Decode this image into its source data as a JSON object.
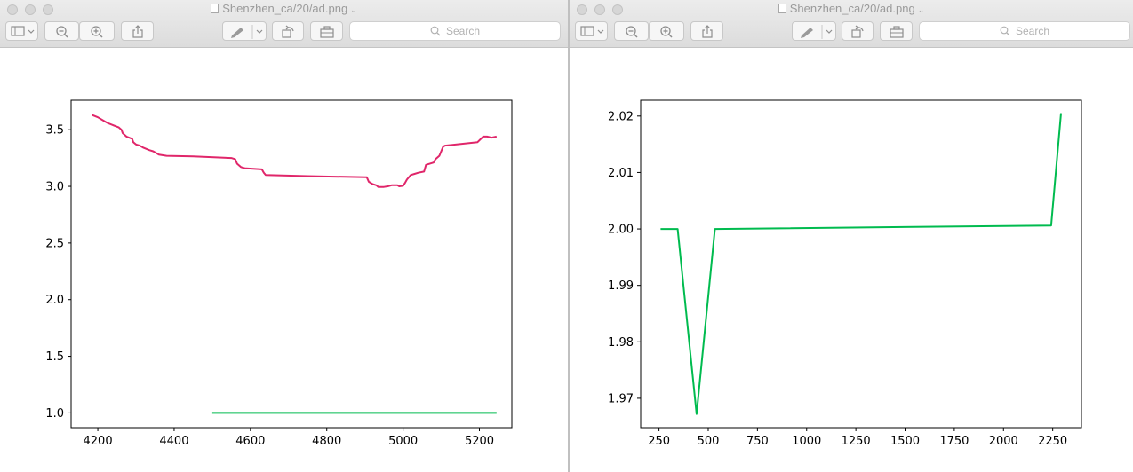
{
  "windows": [
    {
      "title": "Shenzhen_ca/20/ad.png",
      "search_placeholder": "Search",
      "icons": [
        "sidebar-icon",
        "zoom-out-icon",
        "zoom-in-icon",
        "share-icon",
        "markup-pen-icon",
        "rotate-icon",
        "toolbox-icon",
        "search-icon"
      ]
    },
    {
      "title": "Shenzhen_ca/20/ad.png",
      "search_placeholder": "Search",
      "icons": [
        "sidebar-icon",
        "zoom-out-icon",
        "zoom-in-icon",
        "share-icon",
        "markup-pen-icon",
        "rotate-icon",
        "toolbox-icon",
        "search-icon"
      ]
    }
  ],
  "chart_data": [
    {
      "type": "line",
      "title": "",
      "xlabel": "",
      "ylabel": "",
      "xlim": [
        4130,
        5285
      ],
      "ylim": [
        0.87,
        3.76
      ],
      "xticks": [
        4200,
        4400,
        4600,
        4800,
        5000,
        5200
      ],
      "yticks": [
        1.0,
        1.5,
        2.0,
        2.5,
        3.0,
        3.5
      ],
      "xtick_labels": [
        "4200",
        "4400",
        "4600",
        "4800",
        "5000",
        "5200"
      ],
      "ytick_labels": [
        "1.0",
        "1.5",
        "2.0",
        "2.5",
        "3.0",
        "3.5"
      ],
      "grid": false,
      "series": [
        {
          "color": "#e0266a",
          "points": [
            [
              4185,
              3.63
            ],
            [
              4200,
              3.61
            ],
            [
              4215,
              3.58
            ],
            [
              4225,
              3.56
            ],
            [
              4240,
              3.54
            ],
            [
              4255,
              3.52
            ],
            [
              4262,
              3.5
            ],
            [
              4265,
              3.47
            ],
            [
              4275,
              3.44
            ],
            [
              4290,
              3.42
            ],
            [
              4293,
              3.39
            ],
            [
              4300,
              3.37
            ],
            [
              4310,
              3.36
            ],
            [
              4320,
              3.34
            ],
            [
              4335,
              3.32
            ],
            [
              4345,
              3.31
            ],
            [
              4355,
              3.29
            ],
            [
              4360,
              3.28
            ],
            [
              4380,
              3.27
            ],
            [
              4450,
              3.265
            ],
            [
              4550,
              3.25
            ],
            [
              4560,
              3.24
            ],
            [
              4565,
              3.2
            ],
            [
              4575,
              3.17
            ],
            [
              4585,
              3.16
            ],
            [
              4630,
              3.15
            ],
            [
              4635,
              3.12
            ],
            [
              4640,
              3.1
            ],
            [
              4750,
              3.09
            ],
            [
              4905,
              3.08
            ],
            [
              4910,
              3.04
            ],
            [
              4920,
              3.02
            ],
            [
              4930,
              3.01
            ],
            [
              4935,
              2.995
            ],
            [
              4950,
              2.995
            ],
            [
              4960,
              3.0
            ],
            [
              4970,
              3.01
            ],
            [
              4985,
              3.01
            ],
            [
              4990,
              3.0
            ],
            [
              5000,
              3.005
            ],
            [
              5005,
              3.03
            ],
            [
              5010,
              3.06
            ],
            [
              5020,
              3.1
            ],
            [
              5030,
              3.11
            ],
            [
              5040,
              3.12
            ],
            [
              5055,
              3.13
            ],
            [
              5060,
              3.19
            ],
            [
              5080,
              3.21
            ],
            [
              5085,
              3.24
            ],
            [
              5095,
              3.27
            ],
            [
              5105,
              3.35
            ],
            [
              5110,
              3.36
            ],
            [
              5195,
              3.39
            ],
            [
              5210,
              3.44
            ],
            [
              5220,
              3.44
            ],
            [
              5232,
              3.43
            ],
            [
              5245,
              3.44
            ]
          ]
        },
        {
          "color": "#00bb4f",
          "points": [
            [
              4500,
              1.0
            ],
            [
              5245,
              1.0
            ]
          ]
        }
      ]
    },
    {
      "type": "line",
      "title": "",
      "xlabel": "",
      "ylabel": "",
      "xlim": [
        157,
        2396
      ],
      "ylim": [
        1.9648,
        2.0228
      ],
      "xticks": [
        250,
        500,
        750,
        1000,
        1250,
        1500,
        1750,
        2000,
        2250
      ],
      "yticks": [
        1.97,
        1.98,
        1.99,
        2.0,
        2.01,
        2.02
      ],
      "xtick_labels": [
        "250",
        "500",
        "750",
        "1000",
        "1250",
        "1500",
        "1750",
        "2000",
        "2250"
      ],
      "ytick_labels": [
        "1.97",
        "1.98",
        "1.99",
        "2.00",
        "2.01",
        "2.02"
      ],
      "grid": false,
      "series": [
        {
          "color": "#00bb4f",
          "points": [
            [
              258,
              2.0
            ],
            [
              345,
              2.0
            ],
            [
              441,
              1.9672
            ],
            [
              534,
              2.0
            ],
            [
              2242,
              2.0006
            ],
            [
              2292,
              2.0205
            ]
          ]
        }
      ]
    }
  ]
}
